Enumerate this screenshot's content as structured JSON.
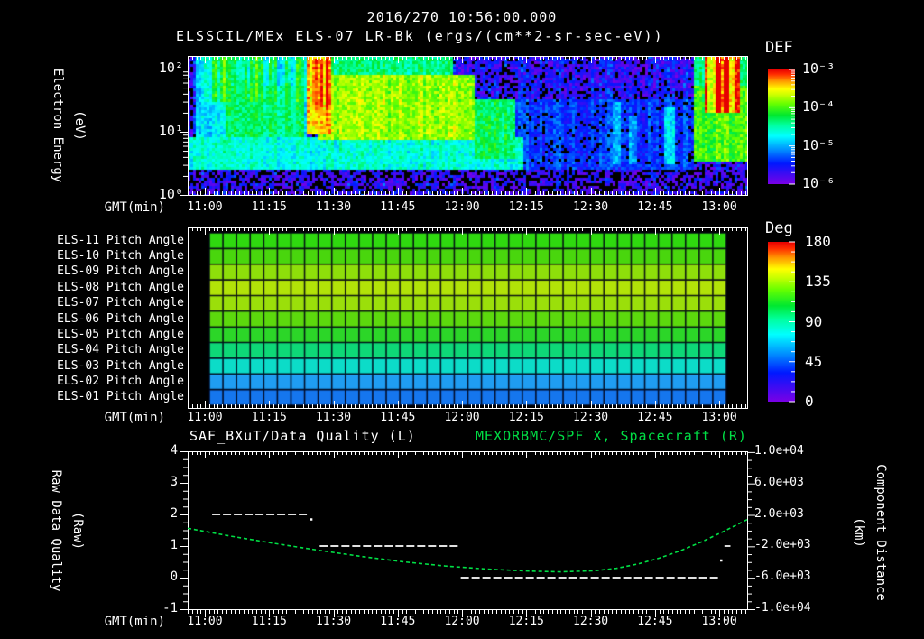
{
  "page": {
    "background": "#000000",
    "text_color": "#ffffff",
    "green_accent": "#00df45"
  },
  "header": {
    "timestamp_title": "2016/270 10:56:00.000",
    "instrument_title": "ELSSCIL/MEx ELS-07 LR-Bk  (ergs/(cm**2-sr-sec-eV))"
  },
  "time_axis": {
    "label": "GMT(min)",
    "major_tick_labels": [
      "11:00",
      "11:15",
      "11:30",
      "11:45",
      "12:00",
      "12:15",
      "12:30",
      "12:45",
      "13:00"
    ],
    "major_tick_minutes": [
      4,
      19,
      34,
      49,
      64,
      79,
      94,
      109,
      124
    ],
    "minutes_span": 130.5
  },
  "palette": {
    "name": "rainbow",
    "stops": [
      {
        "p": 0.0,
        "c": "#7a00e6"
      },
      {
        "p": 0.18,
        "c": "#0018ff"
      },
      {
        "p": 0.3,
        "c": "#0090ff"
      },
      {
        "p": 0.42,
        "c": "#00ffff"
      },
      {
        "p": 0.52,
        "c": "#00ff99"
      },
      {
        "p": 0.6,
        "c": "#00e830"
      },
      {
        "p": 0.7,
        "c": "#66ff00"
      },
      {
        "p": 0.78,
        "c": "#ccff00"
      },
      {
        "p": 0.83,
        "c": "#ffff00"
      },
      {
        "p": 0.9,
        "c": "#ff9900"
      },
      {
        "p": 0.96,
        "c": "#ff2a00"
      },
      {
        "p": 1.0,
        "c": "#e60000"
      }
    ]
  },
  "spectrogram_panel": {
    "y_axis_label_outer": "Electron Energy",
    "y_axis_label_inner": "(eV)",
    "y_tick_labels": [
      "10²",
      "10¹",
      "10⁰"
    ],
    "y_tick_log_values": [
      2,
      1,
      0
    ],
    "colorbar": {
      "title": "DEF",
      "tick_labels": [
        "10⁻³",
        "10⁻⁴",
        "10⁻⁵",
        "10⁻⁶"
      ],
      "tick_log_values": [
        -3,
        -4,
        -5,
        -6
      ]
    }
  },
  "pitch_panel": {
    "colorbar": {
      "title": "Deg",
      "tick_labels": [
        "180",
        "135",
        "90",
        "45",
        "0"
      ],
      "tick_values": [
        180,
        135,
        90,
        45,
        0
      ]
    }
  },
  "quality_panel": {
    "title_left": "SAF_BXuT/Data Quality (L)",
    "title_right": "MEXORBMC/SPF X, Spacecraft (R)",
    "left_axis": {
      "label_outer": "Raw Data Quality",
      "label_inner": "(Raw)",
      "tick_labels": [
        "4",
        "3",
        "2",
        "1",
        "0",
        "-1"
      ],
      "tick_values": [
        4,
        3,
        2,
        1,
        0,
        -1
      ],
      "range": [
        -1,
        4
      ]
    },
    "right_axis": {
      "label_outer": "Component Distance",
      "label_inner": "(km)",
      "tick_labels": [
        "1.0e+04",
        "6.0e+03",
        "2.0e+03",
        "-2.0e+03",
        "-6.0e+03",
        "-1.0e+04"
      ],
      "tick_values": [
        10000,
        6000,
        2000,
        -2000,
        -6000,
        -10000
      ],
      "range": [
        -10000,
        10100
      ]
    }
  },
  "chart_data": [
    {
      "type": "heatmap",
      "name": "electron-energy-spectrogram",
      "title": "ELSSCIL/MEx ELS-07 LR-Bk",
      "z_units": "ergs/(cm**2-sr-sec-eV)",
      "x_start_gmt": "10:56",
      "x_end_gmt": "13:06",
      "x_span_min": 130.5,
      "y_scale": "log",
      "y_range_ev": [
        1,
        182
      ],
      "z_range": [
        1e-06,
        0.001
      ],
      "background_log10": -5.65,
      "features": [
        {
          "t": [
            0,
            78
          ],
          "e": [
            0.42,
            0.95
          ],
          "v": -4.65,
          "note": "cyan 3-8 eV band across first half"
        },
        {
          "t": [
            2,
            28
          ],
          "e": [
            0.95,
            2.26
          ],
          "v": -4.85,
          "note": "blue-cyan upper region before burst"
        },
        {
          "t": [
            4,
            28
          ],
          "e": [
            1.5,
            2.26
          ],
          "v": -4.5,
          "stripe": true,
          "note": "striped cyan-green patches at high energy"
        },
        {
          "t": [
            9,
            27
          ],
          "e": [
            0.95,
            1.8
          ],
          "v": -4.35,
          "note": "green-cyan mid energies"
        },
        {
          "t": [
            28,
            33.5
          ],
          "e": [
            1.0,
            2.26
          ],
          "v": -3.4,
          "note": "bright burst ~11:24-11:30"
        },
        {
          "t": [
            28.5,
            33
          ],
          "e": [
            1.45,
            2.2
          ],
          "v": -3.05,
          "stripe": true,
          "note": "red/orange streaks in burst"
        },
        {
          "t": [
            30,
            67
          ],
          "e": [
            0.9,
            1.95
          ],
          "v": -3.8,
          "note": "yellow-green band 11:26-12:03"
        },
        {
          "t": [
            33,
            62
          ],
          "e": [
            1.95,
            2.26
          ],
          "v": -4.4,
          "note": "green top after burst"
        },
        {
          "t": [
            67,
            76
          ],
          "e": [
            0.6,
            1.55
          ],
          "v": -4.3,
          "note": "decaying green blob ~12:03-12:12"
        },
        {
          "t": [
            76,
            118
          ],
          "e": [
            0.45,
            1.55
          ],
          "v": -5.4,
          "note": "faint blue region"
        },
        {
          "t": [
            99,
            101
          ],
          "e": [
            0.5,
            1.5
          ],
          "v": -4.9,
          "note": "cyan wisp"
        },
        {
          "t": [
            102.5,
            104.5
          ],
          "e": [
            0.5,
            1.3
          ],
          "v": -5.0,
          "note": "cyan wisp"
        },
        {
          "t": [
            111,
            113.5
          ],
          "e": [
            0.5,
            1.45
          ],
          "v": -4.9,
          "note": "cyan wisp"
        },
        {
          "t": [
            118,
            130.5
          ],
          "e": [
            0.55,
            1.8
          ],
          "v": -4.0,
          "note": "final green burst after 12:54"
        },
        {
          "t": [
            120.5,
            128.5
          ],
          "e": [
            1.35,
            2.26
          ],
          "v": -3.15,
          "stripe": true,
          "note": "red/orange streaks ~13:00"
        },
        {
          "t": [
            118,
            130.5
          ],
          "e": [
            1.8,
            2.26
          ],
          "v": -4.35
        }
      ]
    },
    {
      "type": "heatmap",
      "name": "pitch-angle-panels",
      "z_units": "Deg",
      "z_range": [
        0,
        180
      ],
      "x_start_gmt": "11:00",
      "x_end_gmt": "13:01",
      "cell_minutes": 3,
      "rows": [
        {
          "label": "ELS-11 Pitch Angle",
          "deg": 100,
          "color": "#2fd90f"
        },
        {
          "label": "ELS-10 Pitch Angle",
          "deg": 104,
          "color": "#49d60d"
        },
        {
          "label": "ELS-09 Pitch Angle",
          "deg": 113,
          "color": "#8edf0a"
        },
        {
          "label": "ELS-08 Pitch Angle",
          "deg": 118,
          "color": "#b2e308"
        },
        {
          "label": "ELS-07 Pitch Angle",
          "deg": 115,
          "color": "#9bdf0a"
        },
        {
          "label": "ELS-06 Pitch Angle",
          "deg": 106,
          "color": "#5cd90d"
        },
        {
          "label": "ELS-05 Pitch Angle",
          "deg": 98,
          "color": "#2cd628"
        },
        {
          "label": "ELS-04 Pitch Angle",
          "deg": 86,
          "color": "#0ed877"
        },
        {
          "label": "ELS-03 Pitch Angle",
          "deg": 72,
          "color": "#0cdcc8"
        },
        {
          "label": "ELS-02 Pitch Angle",
          "deg": 56,
          "color": "#1f9df2"
        },
        {
          "label": "ELS-01 Pitch Angle",
          "deg": 48,
          "color": "#1576ee"
        }
      ]
    },
    {
      "type": "line",
      "name": "quality-and-spacecraft-x",
      "left_ylim": [
        -1,
        4
      ],
      "right_ylim": [
        -10000,
        10100
      ],
      "series": [
        {
          "name": "SAF_BXuT/Data Quality",
          "axis": "left",
          "color": "#ffffff",
          "style": "dashed",
          "segments": [
            {
              "value": 2,
              "t": [
                5.7,
                28.1
              ]
            },
            {
              "value": 1,
              "t": [
                30.8,
                63.3
              ]
            },
            {
              "value": 0,
              "t": [
                63.7,
                124.1
              ]
            },
            {
              "value": 1,
              "t": [
                125.2,
                126.6
              ]
            }
          ],
          "point_markers": [
            {
              "t": 28.8,
              "value": 1.85
            },
            {
              "t": 124.4,
              "value": 0.55
            }
          ]
        },
        {
          "name": "MEXORBMC/SPF X, Spacecraft",
          "axis": "right",
          "color": "#00df45",
          "style": "dashed",
          "points": [
            [
              0,
              300
            ],
            [
              10,
              -700
            ],
            [
              20,
              -1600
            ],
            [
              30,
              -2450
            ],
            [
              40,
              -3250
            ],
            [
              50,
              -3950
            ],
            [
              60,
              -4500
            ],
            [
              70,
              -4900
            ],
            [
              80,
              -5150
            ],
            [
              87,
              -5250
            ],
            [
              95,
              -5100
            ],
            [
              100,
              -4800
            ],
            [
              105,
              -4250
            ],
            [
              110,
              -3500
            ],
            [
              115,
              -2550
            ],
            [
              120,
              -1400
            ],
            [
              125,
              -100
            ],
            [
              130.5,
              1400
            ]
          ]
        }
      ]
    }
  ]
}
